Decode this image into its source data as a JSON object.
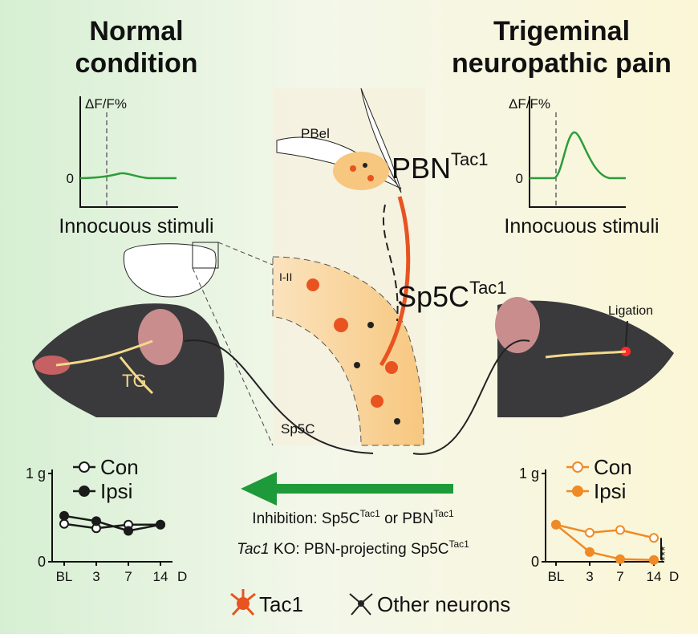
{
  "left": {
    "title": [
      "Normal",
      "condition"
    ],
    "trace": {
      "ylabel": "ΔF/F%",
      "zero": "0",
      "caption": "Innocuous stimuli"
    },
    "plot": {
      "categories": [
        "BL",
        "3",
        "7",
        "14"
      ],
      "x_unit": "D",
      "ylim": [
        0,
        1
      ],
      "yticks": [
        {
          "value": 1,
          "label": "1 g"
        },
        0
      ],
      "series": [
        {
          "name": "Con",
          "color": "#1a1a1a",
          "filled": false,
          "values": [
            0.43,
            0.38,
            0.42,
            0.42
          ]
        },
        {
          "name": "Ipsi",
          "color": "#1a1a1a",
          "filled": true,
          "values": [
            0.52,
            0.46,
            0.35,
            0.42
          ]
        }
      ]
    }
  },
  "right": {
    "title": [
      "Trigeminal",
      "neuropathic pain"
    ],
    "trace": {
      "ylabel": "ΔF/F%",
      "zero": "0",
      "caption": "Innocuous stimuli"
    },
    "plot": {
      "categories": [
        "BL",
        "3",
        "7",
        "14"
      ],
      "x_unit": "D",
      "ylim": [
        0,
        1
      ],
      "yticks": [
        {
          "value": 1,
          "label": "1 g"
        },
        0
      ],
      "significance": "***",
      "series": [
        {
          "name": "Con",
          "color": "#f08a24",
          "filled": false,
          "values": [
            0.42,
            0.33,
            0.36,
            0.27
          ]
        },
        {
          "name": "Ipsi",
          "color": "#f08a24",
          "filled": true,
          "values": [
            0.42,
            0.11,
            0.03,
            0.02
          ]
        }
      ]
    }
  },
  "center": {
    "pbel": "PBel",
    "pbn": {
      "base": "PBN",
      "sup": "Tac1"
    },
    "lamina": "I-II",
    "sp5c_label": {
      "base": "Sp5C",
      "sup": "Tac1"
    },
    "sp5c": "Sp5C",
    "tg": "TG",
    "ligation": "Ligation"
  },
  "interventions": {
    "line1": {
      "prefix": "Inhibition: Sp5C",
      "sup1": "Tac1",
      "mid": " or PBN",
      "sup2": "Tac1"
    },
    "line2": {
      "gene": "Tac1",
      "rest": " KO: PBN-projecting Sp5C",
      "sup": "Tac1"
    }
  },
  "legend": {
    "tac1": "Tac1",
    "other": "Other neurons"
  }
}
